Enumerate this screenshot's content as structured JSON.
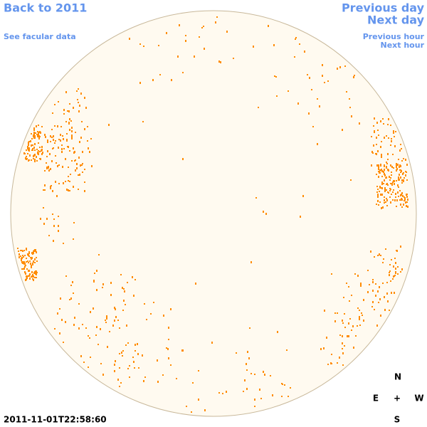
{
  "nav": {
    "back": "Back to 2011",
    "facular": "See facular data",
    "previous_day": "Previous day",
    "next_day": "Next day",
    "previous_hour": "Previous hour",
    "next_hour": "Next hour"
  },
  "timestamp": "2011-11-01T22:58:60",
  "compass": {
    "north": "N",
    "east": "E",
    "center": "+",
    "west": "W",
    "south": "S"
  }
}
